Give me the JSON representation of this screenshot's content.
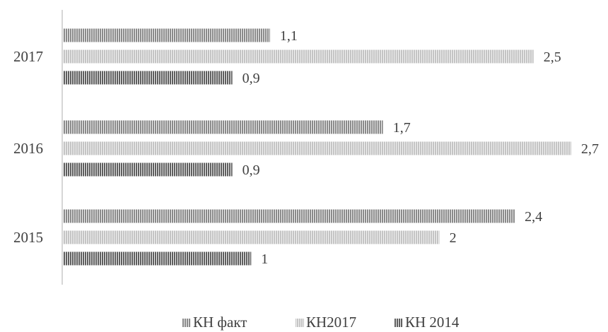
{
  "chart_data": {
    "type": "bar",
    "orientation": "horizontal",
    "categories": [
      "2015",
      "2016",
      "2017"
    ],
    "series": [
      {
        "name": "КН факт",
        "values": [
          "2,4",
          "1,7",
          "1,1"
        ],
        "numeric": [
          2.4,
          1.7,
          1.1
        ],
        "color": "#8a8a8a"
      },
      {
        "name": "КН2017",
        "values": [
          "2",
          "2,7",
          "2,5"
        ],
        "numeric": [
          2.0,
          2.7,
          2.5
        ],
        "color": "#c4c4c4"
      },
      {
        "name": "КН 2014",
        "values": [
          "1",
          "0,9",
          "0,9"
        ],
        "numeric": [
          1.0,
          0.9,
          0.9
        ],
        "color": "#5e5e5e"
      }
    ],
    "xlim": [
      0,
      2.7
    ],
    "grid": false,
    "legend_position": "bottom",
    "bar_pattern": "vertical-stripes"
  }
}
